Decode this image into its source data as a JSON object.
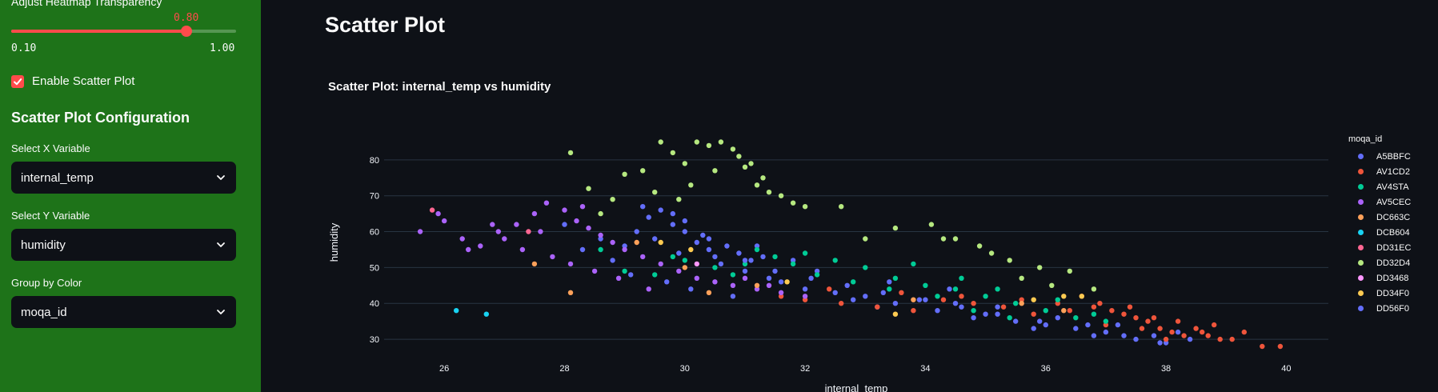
{
  "sidebar": {
    "transparency": {
      "label": "Adjust Heatmap Transparency",
      "value": "0.80",
      "min_label": "0.10",
      "max_label": "1.00",
      "min": 0.1,
      "max": 1.0,
      "current": 0.8
    },
    "scatter_toggle": {
      "label": "Enable Scatter Plot",
      "checked": true
    },
    "config_title": "Scatter Plot Configuration",
    "x_select": {
      "label": "Select X Variable",
      "value": "internal_temp"
    },
    "y_select": {
      "label": "Select Y Variable",
      "value": "humidity"
    },
    "color_select": {
      "label": "Group by Color",
      "value": "moqa_id"
    }
  },
  "main": {
    "title": "Scatter Plot"
  },
  "chart_data": {
    "type": "scatter",
    "title": "Scatter Plot: internal_temp vs humidity",
    "xlabel": "internal_temp",
    "ylabel": "humidity",
    "xlim": [
      25.0,
      40.7
    ],
    "ylim": [
      26,
      88
    ],
    "x_ticks": [
      26,
      28,
      30,
      32,
      34,
      36,
      38,
      40
    ],
    "y_ticks": [
      30,
      40,
      50,
      60,
      70,
      80
    ],
    "grid": "horizontal",
    "legend_title": "moqa_id",
    "legend_position": "right",
    "series": [
      {
        "name": "A5BBFC",
        "color": "#636efa",
        "points": [
          [
            28.0,
            62
          ],
          [
            28.6,
            58
          ],
          [
            29.0,
            56
          ],
          [
            29.4,
            64
          ],
          [
            29.6,
            66
          ],
          [
            29.8,
            62
          ],
          [
            30.0,
            60
          ],
          [
            30.2,
            57
          ],
          [
            30.4,
            55
          ],
          [
            30.5,
            53
          ],
          [
            30.7,
            56
          ],
          [
            30.9,
            54
          ],
          [
            31.1,
            52
          ],
          [
            31.3,
            53
          ],
          [
            29.2,
            60
          ],
          [
            29.5,
            58
          ],
          [
            29.9,
            54
          ],
          [
            30.3,
            59
          ],
          [
            30.6,
            51
          ],
          [
            31.0,
            49
          ],
          [
            31.4,
            47
          ],
          [
            28.3,
            55
          ],
          [
            28.8,
            52
          ],
          [
            29.1,
            48
          ],
          [
            29.7,
            46
          ],
          [
            30.1,
            44
          ],
          [
            30.8,
            42
          ],
          [
            31.6,
            46
          ],
          [
            32.0,
            44
          ],
          [
            32.5,
            43
          ],
          [
            33.0,
            42
          ],
          [
            33.5,
            40
          ],
          [
            34.0,
            41
          ],
          [
            34.5,
            40
          ],
          [
            35.0,
            37
          ],
          [
            35.5,
            35
          ],
          [
            36.0,
            34
          ],
          [
            36.5,
            33
          ],
          [
            37.0,
            32
          ],
          [
            37.5,
            30
          ],
          [
            38.0,
            29
          ],
          [
            38.2,
            32
          ],
          [
            36.8,
            31
          ],
          [
            35.8,
            33
          ],
          [
            34.8,
            36
          ],
          [
            34.2,
            38
          ],
          [
            33.2,
            39
          ],
          [
            32.8,
            41
          ],
          [
            29.3,
            67
          ],
          [
            30.0,
            63
          ],
          [
            31.2,
            56
          ],
          [
            31.8,
            52
          ],
          [
            32.2,
            49
          ],
          [
            33.4,
            46
          ],
          [
            34.4,
            44
          ],
          [
            35.2,
            39
          ],
          [
            37.2,
            34
          ],
          [
            37.8,
            31
          ],
          [
            38.4,
            30
          ],
          [
            36.2,
            36
          ]
        ]
      },
      {
        "name": "AV1CD2",
        "color": "#ef553b",
        "points": [
          [
            31.6,
            42
          ],
          [
            32.0,
            41
          ],
          [
            32.6,
            40
          ],
          [
            33.2,
            39
          ],
          [
            33.8,
            38
          ],
          [
            34.3,
            41
          ],
          [
            34.8,
            40
          ],
          [
            35.3,
            39
          ],
          [
            35.8,
            37
          ],
          [
            36.2,
            40
          ],
          [
            36.6,
            42
          ],
          [
            36.9,
            40
          ],
          [
            37.1,
            38
          ],
          [
            37.3,
            37
          ],
          [
            37.5,
            36
          ],
          [
            37.7,
            35
          ],
          [
            37.9,
            33
          ],
          [
            38.1,
            32
          ],
          [
            38.3,
            31
          ],
          [
            38.5,
            33
          ],
          [
            38.7,
            31
          ],
          [
            38.9,
            30
          ],
          [
            39.1,
            30
          ],
          [
            39.3,
            32
          ],
          [
            39.6,
            28
          ],
          [
            39.9,
            28
          ],
          [
            37.0,
            34
          ],
          [
            37.4,
            39
          ],
          [
            37.8,
            36
          ],
          [
            38.2,
            35
          ],
          [
            38.6,
            32
          ],
          [
            36.4,
            38
          ],
          [
            35.6,
            41
          ],
          [
            34.6,
            42
          ],
          [
            33.6,
            43
          ],
          [
            32.4,
            44
          ],
          [
            36.8,
            39
          ],
          [
            37.6,
            33
          ],
          [
            38.0,
            30
          ],
          [
            38.8,
            34
          ]
        ]
      },
      {
        "name": "AV4STA",
        "color": "#00cc96",
        "points": [
          [
            29.0,
            49
          ],
          [
            29.5,
            48
          ],
          [
            30.0,
            52
          ],
          [
            30.5,
            50
          ],
          [
            31.0,
            51
          ],
          [
            31.5,
            53
          ],
          [
            32.0,
            54
          ],
          [
            32.5,
            52
          ],
          [
            33.0,
            50
          ],
          [
            33.5,
            47
          ],
          [
            34.0,
            45
          ],
          [
            34.5,
            44
          ],
          [
            35.0,
            42
          ],
          [
            35.5,
            40
          ],
          [
            36.0,
            38
          ],
          [
            36.5,
            36
          ],
          [
            37.0,
            35
          ],
          [
            31.2,
            55
          ],
          [
            31.8,
            51
          ],
          [
            32.2,
            48
          ],
          [
            32.8,
            46
          ],
          [
            33.4,
            44
          ],
          [
            34.2,
            42
          ],
          [
            34.8,
            38
          ],
          [
            35.4,
            36
          ],
          [
            36.2,
            41
          ],
          [
            36.8,
            37
          ],
          [
            30.8,
            48
          ],
          [
            29.8,
            53
          ],
          [
            28.6,
            55
          ],
          [
            33.8,
            51
          ],
          [
            34.6,
            47
          ],
          [
            35.2,
            44
          ]
        ]
      },
      {
        "name": "AV5CEC",
        "color": "#ab63fa",
        "points": [
          [
            25.6,
            60
          ],
          [
            26.0,
            63
          ],
          [
            26.3,
            58
          ],
          [
            26.6,
            56
          ],
          [
            26.9,
            60
          ],
          [
            27.2,
            62
          ],
          [
            27.5,
            65
          ],
          [
            27.7,
            68
          ],
          [
            28.0,
            66
          ],
          [
            28.2,
            63
          ],
          [
            28.4,
            61
          ],
          [
            28.6,
            59
          ],
          [
            28.8,
            57
          ],
          [
            29.0,
            55
          ],
          [
            29.3,
            53
          ],
          [
            29.6,
            51
          ],
          [
            29.9,
            49
          ],
          [
            30.2,
            47
          ],
          [
            30.5,
            46
          ],
          [
            30.8,
            45
          ],
          [
            31.2,
            44
          ],
          [
            31.6,
            43
          ],
          [
            32.0,
            42
          ],
          [
            27.0,
            58
          ],
          [
            27.3,
            55
          ],
          [
            27.8,
            53
          ],
          [
            28.1,
            51
          ],
          [
            28.5,
            49
          ],
          [
            28.9,
            47
          ],
          [
            29.4,
            44
          ],
          [
            26.8,
            62
          ],
          [
            27.6,
            60
          ],
          [
            26.4,
            55
          ],
          [
            25.9,
            65
          ],
          [
            28.3,
            67
          ],
          [
            31.0,
            47
          ],
          [
            31.4,
            45
          ]
        ]
      },
      {
        "name": "DC663C",
        "color": "#ffa15a",
        "points": [
          [
            27.5,
            51
          ],
          [
            28.1,
            43
          ],
          [
            29.2,
            57
          ],
          [
            30.0,
            50
          ],
          [
            30.4,
            43
          ],
          [
            31.2,
            45
          ],
          [
            33.8,
            41
          ],
          [
            35.6,
            40
          ],
          [
            36.3,
            38
          ]
        ]
      },
      {
        "name": "DCB604",
        "color": "#19d3f3",
        "points": [
          [
            26.2,
            38
          ],
          [
            26.7,
            37
          ]
        ]
      },
      {
        "name": "DD31EC",
        "color": "#ff6692",
        "points": [
          [
            25.8,
            66
          ],
          [
            27.4,
            60
          ]
        ]
      },
      {
        "name": "DD32D4",
        "color": "#b6e880",
        "points": [
          [
            28.1,
            82
          ],
          [
            28.4,
            72
          ],
          [
            28.8,
            69
          ],
          [
            29.0,
            76
          ],
          [
            29.3,
            77
          ],
          [
            29.6,
            85
          ],
          [
            29.8,
            82
          ],
          [
            30.0,
            79
          ],
          [
            30.2,
            85
          ],
          [
            30.4,
            84
          ],
          [
            30.6,
            85
          ],
          [
            30.8,
            83
          ],
          [
            31.0,
            78
          ],
          [
            31.2,
            73
          ],
          [
            31.4,
            71
          ],
          [
            31.6,
            70
          ],
          [
            31.8,
            68
          ],
          [
            32.0,
            67
          ],
          [
            29.5,
            71
          ],
          [
            30.1,
            73
          ],
          [
            30.5,
            77
          ],
          [
            30.9,
            81
          ],
          [
            31.1,
            79
          ],
          [
            31.3,
            75
          ],
          [
            32.6,
            67
          ],
          [
            33.5,
            61
          ],
          [
            34.1,
            62
          ],
          [
            34.5,
            58
          ],
          [
            34.9,
            56
          ],
          [
            35.4,
            52
          ],
          [
            35.9,
            50
          ],
          [
            36.4,
            49
          ],
          [
            36.8,
            44
          ],
          [
            33.0,
            58
          ],
          [
            34.3,
            58
          ],
          [
            35.1,
            54
          ],
          [
            28.6,
            65
          ],
          [
            29.9,
            69
          ],
          [
            35.6,
            47
          ],
          [
            36.1,
            45
          ]
        ]
      },
      {
        "name": "DD3468",
        "color": "#ff97ff",
        "points": [
          [
            30.2,
            51
          ]
        ]
      },
      {
        "name": "DD34F0",
        "color": "#fecb52",
        "points": [
          [
            29.6,
            57
          ],
          [
            30.1,
            55
          ],
          [
            31.7,
            46
          ],
          [
            33.5,
            37
          ],
          [
            35.8,
            41
          ],
          [
            36.3,
            42
          ],
          [
            36.6,
            42
          ]
        ]
      },
      {
        "name": "DD56F0",
        "color": "#636efa",
        "points": [
          [
            29.8,
            65
          ],
          [
            30.4,
            58
          ],
          [
            31.0,
            52
          ],
          [
            31.5,
            49
          ],
          [
            32.1,
            47
          ],
          [
            32.7,
            45
          ],
          [
            33.3,
            43
          ],
          [
            33.9,
            41
          ],
          [
            34.6,
            39
          ],
          [
            35.2,
            37
          ],
          [
            35.9,
            35
          ],
          [
            36.7,
            34
          ],
          [
            37.3,
            31
          ],
          [
            37.9,
            29
          ]
        ]
      }
    ]
  }
}
